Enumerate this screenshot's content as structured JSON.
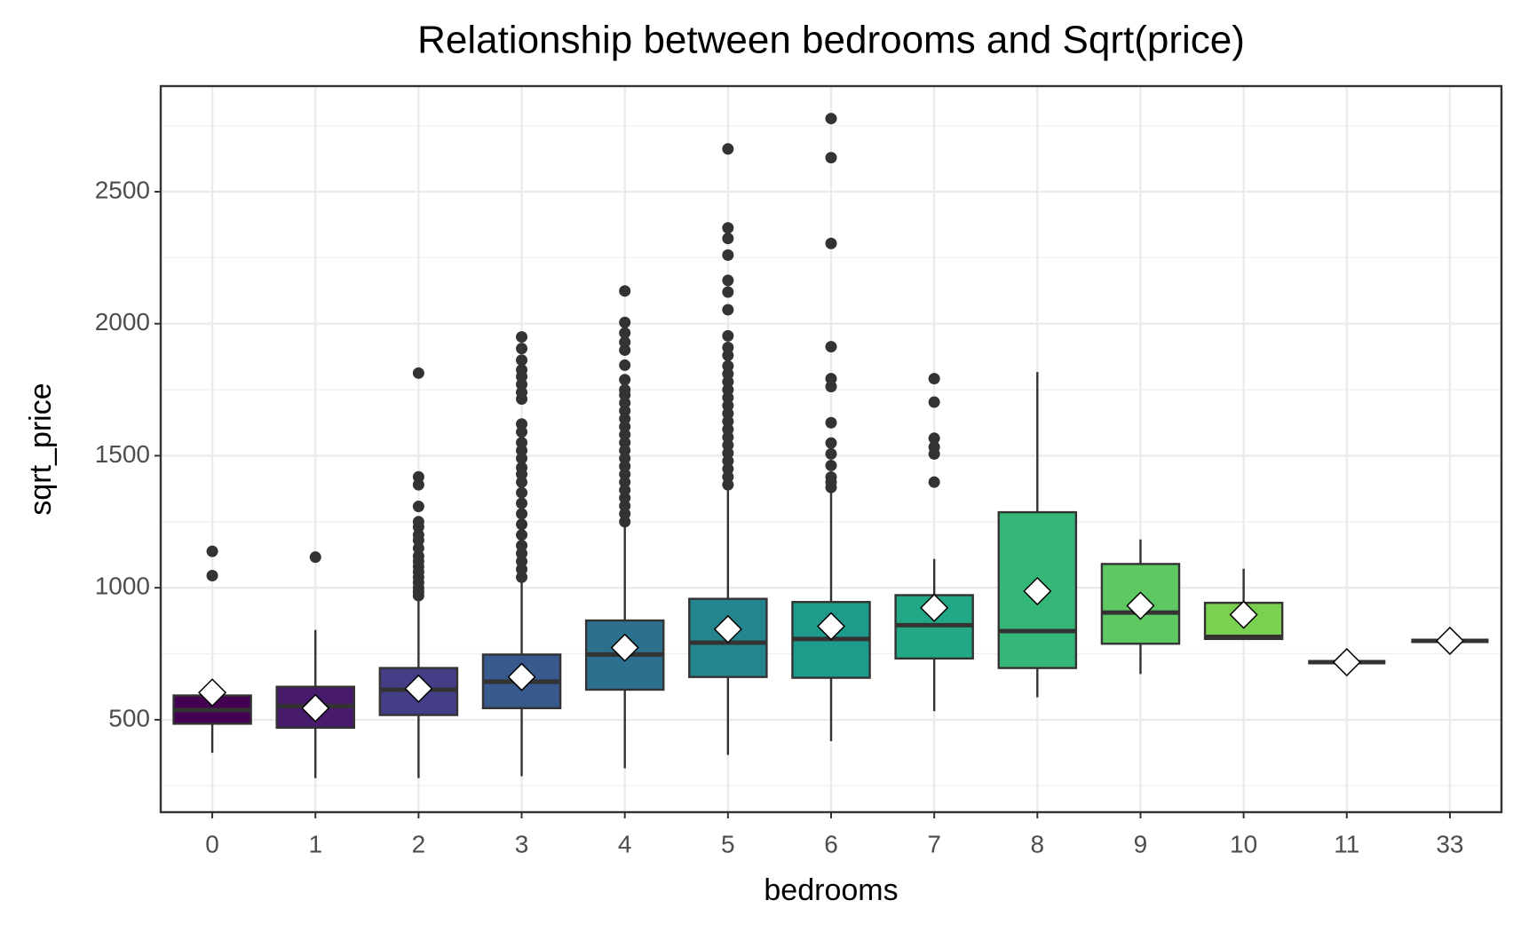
{
  "chart_data": {
    "type": "box",
    "title": "Relationship between bedrooms and Sqrt(price)",
    "x_label": "bedrooms",
    "y_label": "sqrt_price",
    "categories": [
      "0",
      "1",
      "2",
      "3",
      "4",
      "5",
      "6",
      "7",
      "8",
      "9",
      "10",
      "11",
      "33"
    ],
    "ylim": [
      150,
      2900
    ],
    "yticks": [
      500,
      1000,
      1500,
      2000,
      2500
    ],
    "grid": true,
    "boxes": [
      {
        "low": 375,
        "q1": 485,
        "median": 537,
        "q3": 592,
        "high": 600,
        "mean": 603,
        "color": "#440154",
        "outliers": [
          1046,
          1138
        ]
      },
      {
        "low": 279,
        "q1": 470,
        "median": 552,
        "q3": 625,
        "high": 840,
        "mean": 544,
        "color": "#481a6c",
        "outliers": [
          1116
        ]
      },
      {
        "low": 279,
        "q1": 518,
        "median": 614,
        "q3": 696,
        "high": 957,
        "mean": 618,
        "color": "#433e85",
        "outliers": [
          970,
          985,
          1000,
          1020,
          1040,
          1060,
          1080,
          1100,
          1120,
          1150,
          1180,
          1200,
          1230,
          1250,
          1308,
          1390,
          1420,
          1813
        ]
      },
      {
        "low": 286,
        "q1": 544,
        "median": 644,
        "q3": 747,
        "high": 1031,
        "mean": 662,
        "color": "#38598c",
        "outliers": [
          1040,
          1070,
          1100,
          1130,
          1160,
          1200,
          1240,
          1280,
          1320,
          1360,
          1400,
          1430,
          1455,
          1490,
          1520,
          1550,
          1590,
          1620,
          1715,
          1740,
          1770,
          1800,
          1825,
          1862,
          1906,
          1950
        ]
      },
      {
        "low": 316,
        "q1": 614,
        "median": 747,
        "q3": 876,
        "high": 1245,
        "mean": 773,
        "color": "#2d708e",
        "outliers": [
          1250,
          1280,
          1310,
          1340,
          1370,
          1400,
          1430,
          1460,
          1490,
          1520,
          1550,
          1580,
          1610,
          1640,
          1670,
          1700,
          1730,
          1750,
          1788,
          1843,
          1900,
          1930,
          1965,
          2005,
          2124
        ]
      },
      {
        "low": 367,
        "q1": 662,
        "median": 792,
        "q3": 958,
        "high": 1382,
        "mean": 843,
        "color": "#25858e",
        "outliers": [
          1390,
          1420,
          1450,
          1480,
          1510,
          1540,
          1570,
          1600,
          1630,
          1660,
          1690,
          1720,
          1750,
          1780,
          1810,
          1840,
          1880,
          1910,
          1954,
          2053,
          2120,
          2164,
          2260,
          2323,
          2363,
          2662
        ]
      },
      {
        "low": 419,
        "q1": 659,
        "median": 806,
        "q3": 946,
        "high": 1363,
        "mean": 854,
        "color": "#1e9b8a",
        "outliers": [
          1380,
          1400,
          1419,
          1463,
          1507,
          1548,
          1625,
          1762,
          1792,
          1913,
          2304,
          2629,
          2777
        ]
      },
      {
        "low": 533,
        "q1": 732,
        "median": 858,
        "q3": 972,
        "high": 1109,
        "mean": 924,
        "color": "#22a884",
        "outliers": [
          1400,
          1507,
          1533,
          1566,
          1703,
          1792
        ]
      },
      {
        "low": 585,
        "q1": 696,
        "median": 836,
        "q3": 1286,
        "high": 1817,
        "mean": 987,
        "color": "#35b779",
        "outliers": []
      },
      {
        "low": 673,
        "q1": 788,
        "median": 906,
        "q3": 1090,
        "high": 1183,
        "mean": 932,
        "color": "#5ec962",
        "outliers": []
      },
      {
        "low": 806,
        "q1": 806,
        "median": 814,
        "q3": 943,
        "high": 1072,
        "mean": 898,
        "color": "#7ad151",
        "outliers": []
      },
      {
        "low": 718,
        "q1": 718,
        "median": 718,
        "q3": 718,
        "high": 718,
        "mean": 718,
        "color": "#bddf26",
        "outliers": []
      },
      {
        "low": 799,
        "q1": 799,
        "median": 799,
        "q3": 799,
        "high": 799,
        "mean": 799,
        "color": "#fde725",
        "outliers": []
      }
    ]
  }
}
